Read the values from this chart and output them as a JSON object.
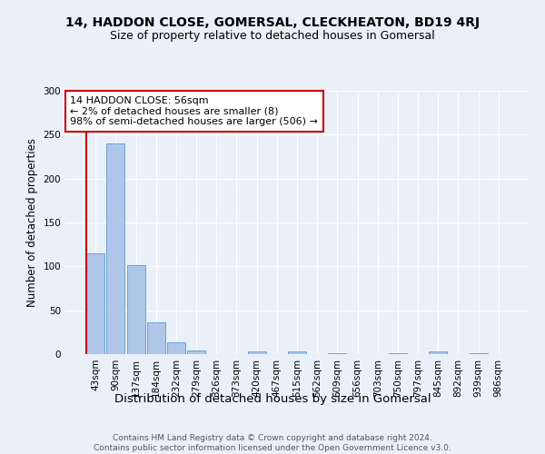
{
  "title": "14, HADDON CLOSE, GOMERSAL, CLECKHEATON, BD19 4RJ",
  "subtitle": "Size of property relative to detached houses in Gomersal",
  "xlabel": "Distribution of detached houses by size in Gomersal",
  "ylabel": "Number of detached properties",
  "categories": [
    "43sqm",
    "90sqm",
    "137sqm",
    "184sqm",
    "232sqm",
    "279sqm",
    "326sqm",
    "373sqm",
    "420sqm",
    "467sqm",
    "515sqm",
    "562sqm",
    "609sqm",
    "656sqm",
    "703sqm",
    "750sqm",
    "797sqm",
    "845sqm",
    "892sqm",
    "939sqm",
    "986sqm"
  ],
  "values": [
    115,
    240,
    101,
    36,
    13,
    4,
    0,
    0,
    3,
    0,
    3,
    0,
    1,
    0,
    0,
    1,
    0,
    3,
    0,
    1,
    0
  ],
  "bar_color": "#aec6e8",
  "bar_edgecolor": "#5b9bd5",
  "highlight_color": "#cc0000",
  "annotation_text": "14 HADDON CLOSE: 56sqm\n← 2% of detached houses are smaller (8)\n98% of semi-detached houses are larger (506) →",
  "annotation_box_edgecolor": "#cc0000",
  "annotation_box_facecolor": "#ffffff",
  "ylim": [
    0,
    300
  ],
  "yticks": [
    0,
    50,
    100,
    150,
    200,
    250,
    300
  ],
  "footer": "Contains HM Land Registry data © Crown copyright and database right 2024.\nContains public sector information licensed under the Open Government Licence v3.0.",
  "bg_color": "#eaf0f8",
  "plot_bg_color": "#eaf0f8",
  "title_fontsize": 10,
  "subtitle_fontsize": 9,
  "xlabel_fontsize": 9.5,
  "ylabel_fontsize": 8.5,
  "tick_fontsize": 7.5,
  "annotation_fontsize": 8,
  "footer_fontsize": 6.5
}
